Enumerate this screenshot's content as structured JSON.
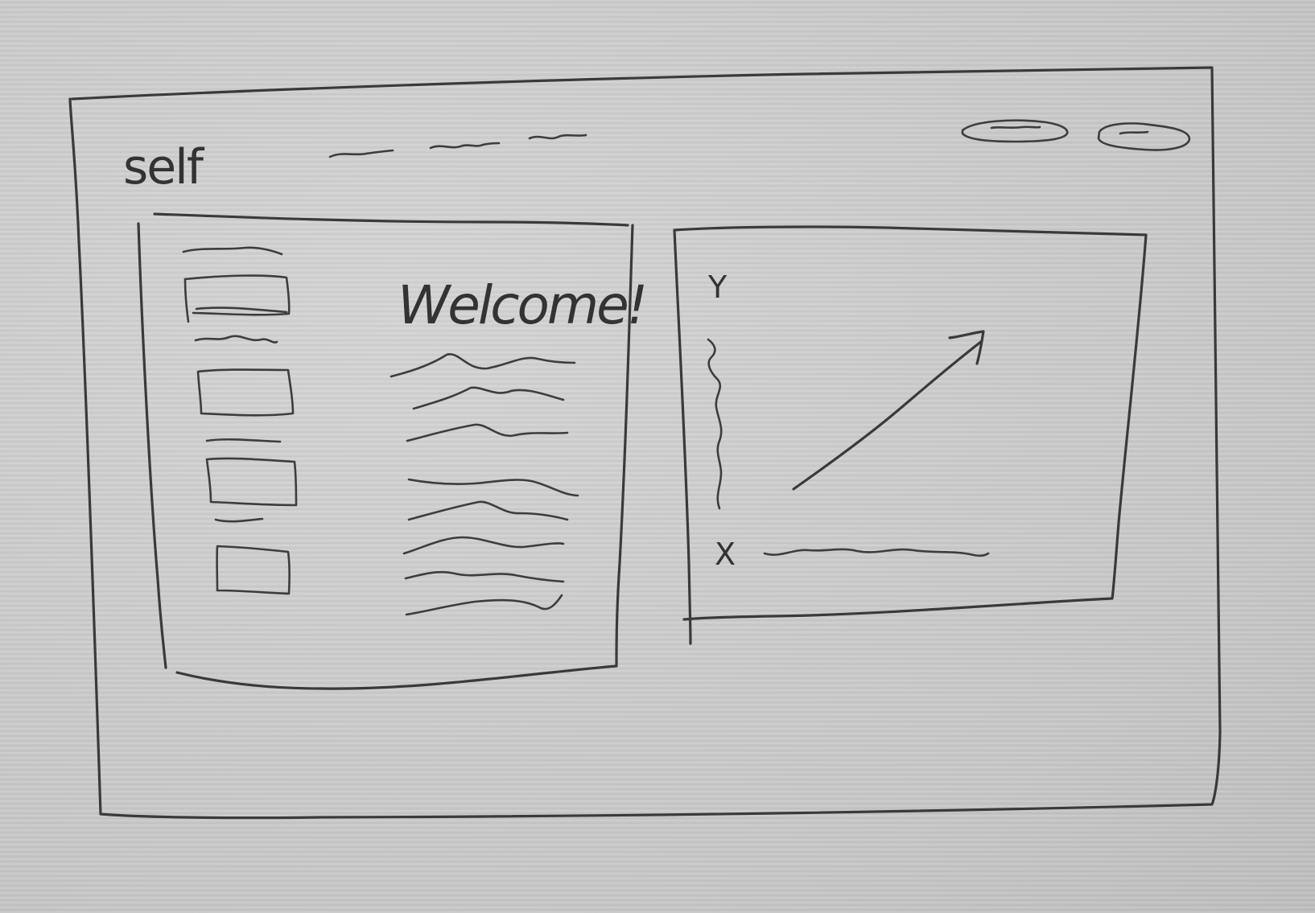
{
  "app": {
    "logo_text": "self"
  },
  "top_nav": {
    "links": [
      "nav-link-1",
      "nav-link-2",
      "nav-link-3"
    ],
    "actions": [
      "primary-action",
      "secondary-action"
    ]
  },
  "left_panel": {
    "welcome_heading": "Welcome!",
    "form_fields": 4,
    "paragraph_lines": 8
  },
  "chart_data": {
    "type": "line",
    "ylabel": "Y",
    "xlabel": "X",
    "trend": "increasing",
    "arrow": true
  }
}
